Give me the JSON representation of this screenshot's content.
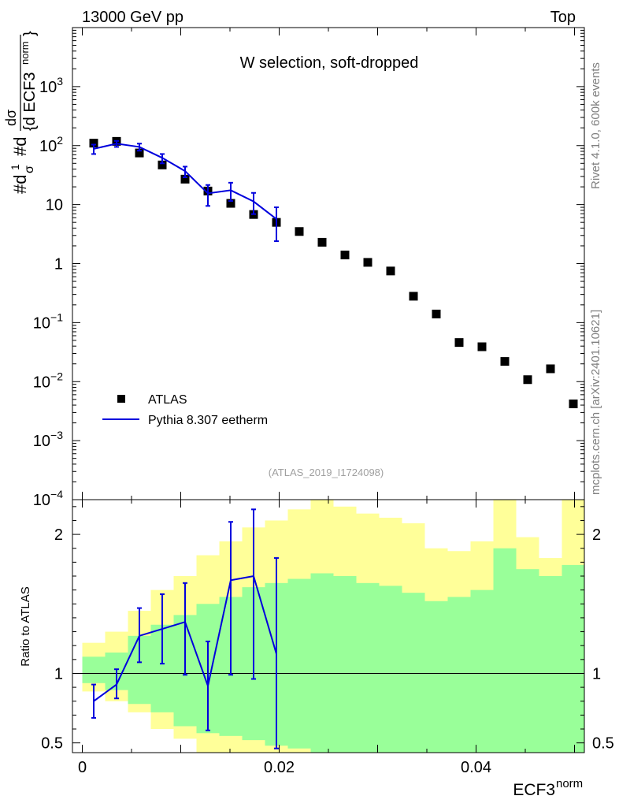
{
  "header": {
    "left": "13000 GeV pp",
    "right": "Top",
    "plot_title": "W selection, soft-dropped",
    "analysis_id": "(ATLAS_2019_I1724098)"
  },
  "side_labels": {
    "rivet": "Rivet 4.1.0,  600k events",
    "mcplots": "mcplots.cern.ch [arXiv:2401.10621]"
  },
  "colors": {
    "data": "#000000",
    "mc": "#0000dd",
    "band_inner": "#99ff99",
    "band_outer": "#ffff99"
  },
  "chart_data": [
    {
      "type": "scatter",
      "panel": "main",
      "title": "W selection, soft-dropped",
      "ylabel": "#d¹/σ #d dσ/{d ECF3^norm}",
      "yscale": "log",
      "ylim": [
        0.0001,
        10000
      ],
      "xlim": [
        -0.001,
        0.051
      ],
      "ytick_labels": [
        {
          "value": 0.0001,
          "base": "10",
          "exp": "−4"
        },
        {
          "value": 0.001,
          "base": "10",
          "exp": "−3"
        },
        {
          "value": 0.01,
          "base": "10",
          "exp": "−2"
        },
        {
          "value": 0.1,
          "base": "10",
          "exp": "−1"
        },
        {
          "value": 1,
          "base": "1",
          "exp": ""
        },
        {
          "value": 10,
          "base": "10",
          "exp": ""
        },
        {
          "value": 100,
          "base": "10",
          "exp": "2"
        },
        {
          "value": 1000,
          "base": "10",
          "exp": "3"
        }
      ],
      "legend": {
        "position": "bottom-left",
        "entries": [
          "ATLAS",
          "Pythia 8.307 eetherm"
        ]
      },
      "series": [
        {
          "name": "ATLAS",
          "style": "markers",
          "x": [
            0.00116,
            0.00348,
            0.0058,
            0.00812,
            0.01044,
            0.01276,
            0.01508,
            0.0174,
            0.01972,
            0.02204,
            0.02436,
            0.02668,
            0.029,
            0.03132,
            0.03364,
            0.03596,
            0.03828,
            0.0406,
            0.04292,
            0.04524,
            0.04756,
            0.04988
          ],
          "y": [
            110,
            118,
            75,
            47,
            27,
            17,
            10.5,
            6.8,
            5.0,
            3.5,
            2.3,
            1.4,
            1.05,
            0.75,
            0.28,
            0.14,
            0.046,
            0.039,
            0.022,
            0.0108,
            0.0165,
            0.0042
          ]
        },
        {
          "name": "Pythia 8.307 eetherm",
          "style": "line",
          "x": [
            0.00116,
            0.00348,
            0.0058,
            0.00812,
            0.01044,
            0.01276,
            0.01508,
            0.0174,
            0.01972
          ],
          "y": [
            88,
            108,
            95,
            62,
            37,
            15.5,
            17.5,
            11.3,
            5.7
          ],
          "yerr_low": [
            72,
            95,
            82,
            50,
            29,
            9.5,
            11.5,
            6.9,
            2.4
          ],
          "yerr_high": [
            104,
            120,
            108,
            72,
            44,
            21.5,
            23.5,
            15.8,
            9.0
          ]
        }
      ]
    },
    {
      "type": "line",
      "panel": "ratio",
      "ylabel": "Ratio to ATLAS",
      "xlabel": "ECF3",
      "xlabel_sup": "norm",
      "xlim": [
        -0.001,
        0.051
      ],
      "ylim": [
        0.43,
        2.25
      ],
      "xtick_labels": [
        {
          "value": 0,
          "label": "0"
        },
        {
          "value": 0.02,
          "label": "0.02"
        },
        {
          "value": 0.04,
          "label": "0.04"
        }
      ],
      "ytick_labels": [
        {
          "value": 0.5,
          "label": "0.5"
        },
        {
          "value": 1,
          "label": "1"
        },
        {
          "value": 2,
          "label": "2"
        }
      ],
      "bin_edges": [
        0,
        0.00232,
        0.00464,
        0.00696,
        0.00928,
        0.0116,
        0.01392,
        0.01624,
        0.01856,
        0.02088,
        0.0232,
        0.02552,
        0.02784,
        0.03016,
        0.03248,
        0.0348,
        0.03712,
        0.03944,
        0.04176,
        0.04408,
        0.0464,
        0.04872,
        0.05104
      ],
      "band_inner_low": [
        0.93,
        0.88,
        0.78,
        0.72,
        0.62,
        0.57,
        0.55,
        0.52,
        0.48,
        0.46,
        0.43,
        0.43,
        0.43,
        0.43,
        0.43,
        0.43,
        0.43,
        0.43,
        0.43,
        0.43,
        0.43,
        0.43
      ],
      "band_inner_high": [
        1.12,
        1.15,
        1.27,
        1.35,
        1.42,
        1.5,
        1.55,
        1.62,
        1.65,
        1.68,
        1.72,
        1.7,
        1.65,
        1.63,
        1.58,
        1.52,
        1.55,
        1.6,
        1.9,
        1.75,
        1.7,
        1.78
      ],
      "band_outer_low": [
        0.87,
        0.8,
        0.72,
        0.6,
        0.53,
        0.43,
        0.43,
        0.43,
        0.43,
        0.43,
        0.43,
        0.43,
        0.43,
        0.43,
        0.43,
        0.43,
        0.43,
        0.43,
        0.43,
        0.43,
        0.43,
        0.43
      ],
      "band_outer_high": [
        1.22,
        1.3,
        1.45,
        1.6,
        1.7,
        1.85,
        1.95,
        2.05,
        2.1,
        2.18,
        2.25,
        2.2,
        2.15,
        2.12,
        2.08,
        1.9,
        1.88,
        1.95,
        2.25,
        1.98,
        1.83,
        2.25
      ],
      "series": [
        {
          "name": "Pythia 8.307 eetherm",
          "x": [
            0.00116,
            0.00348,
            0.0058,
            0.00812,
            0.01044,
            0.01276,
            0.01508,
            0.0174,
            0.01972
          ],
          "y": [
            0.8,
            0.92,
            1.27,
            1.32,
            1.37,
            0.91,
            1.67,
            1.7,
            1.14
          ],
          "yerr_low": [
            0.68,
            0.82,
            1.08,
            1.07,
            0.99,
            0.59,
            0.99,
            0.96,
            0.46
          ],
          "yerr_high": [
            0.92,
            1.03,
            1.47,
            1.57,
            1.65,
            1.23,
            2.09,
            2.18,
            1.83
          ]
        }
      ],
      "reference_line": 1
    }
  ]
}
